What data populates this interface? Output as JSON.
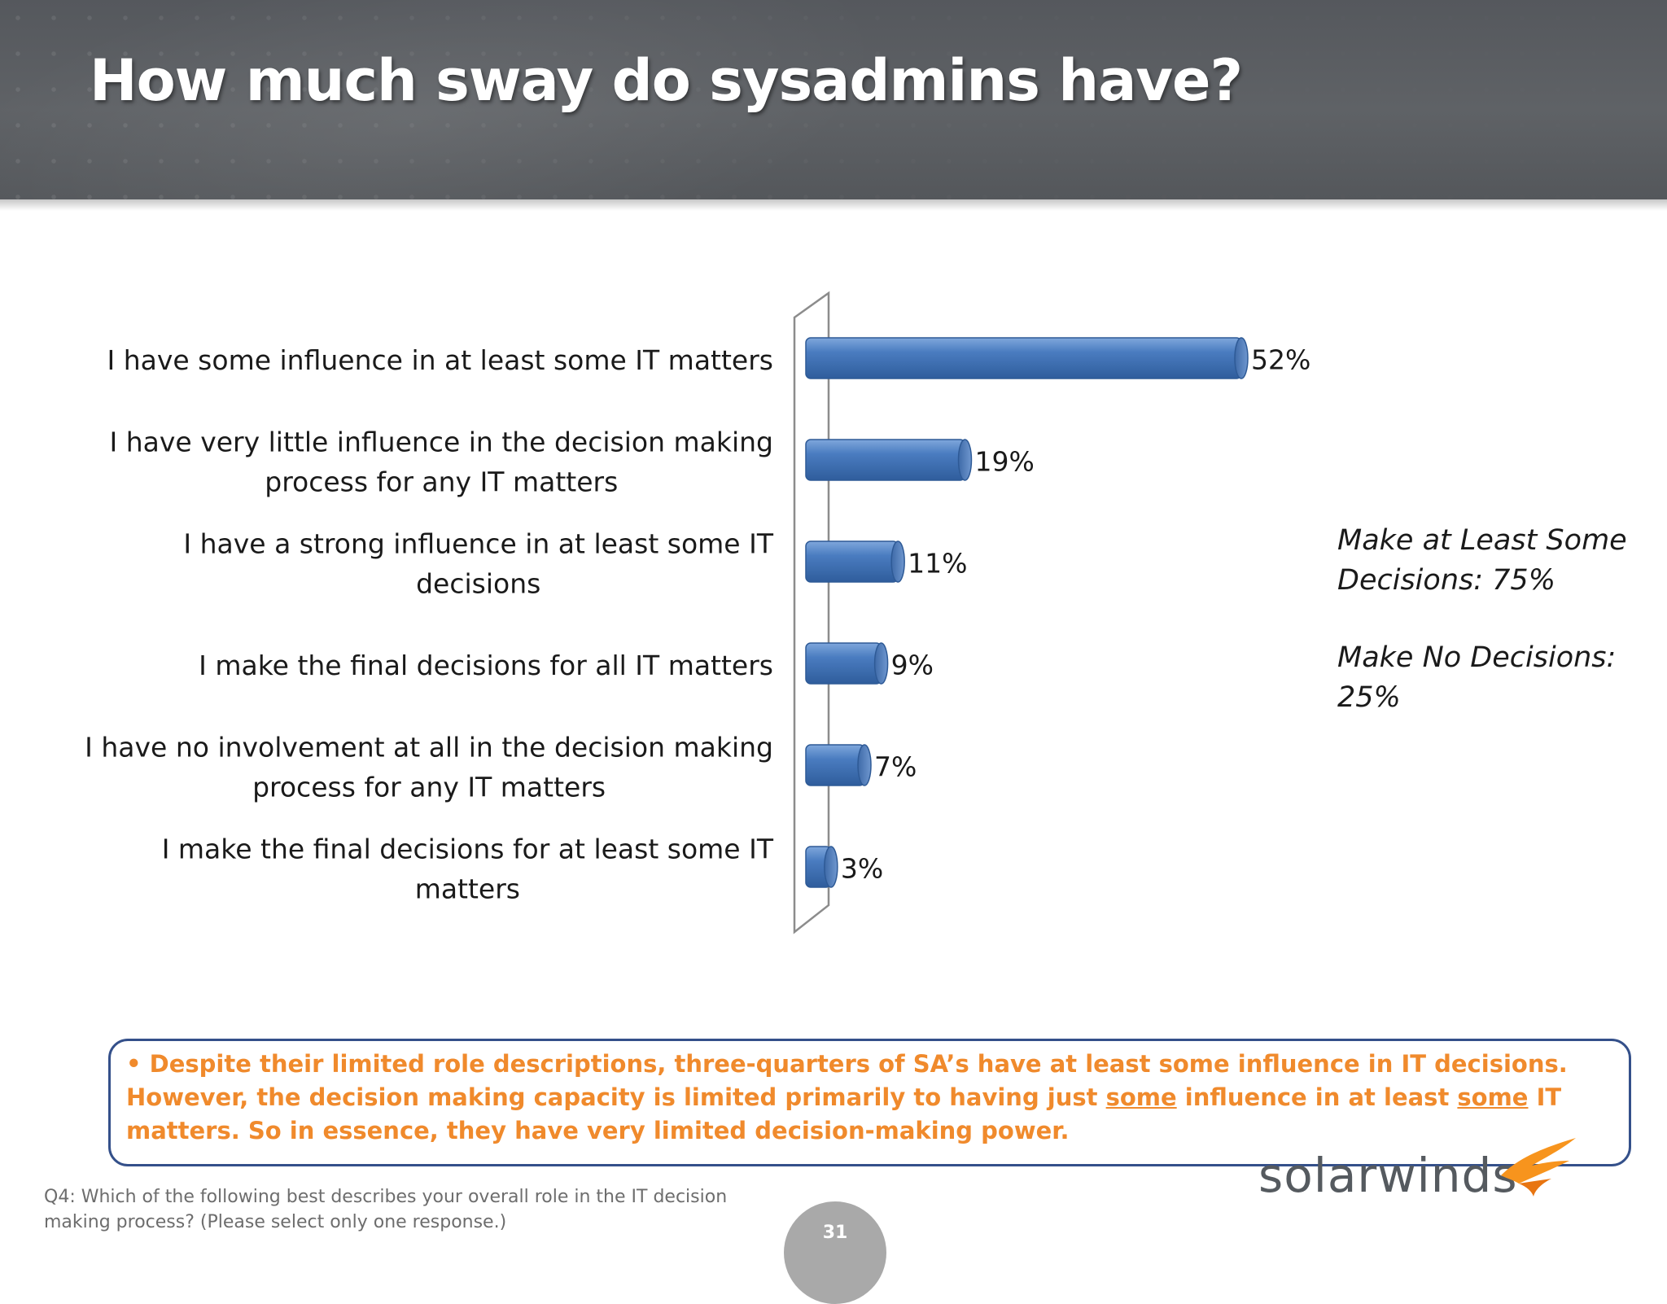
{
  "title": "How much sway do sysadmins have?",
  "chart_data": {
    "type": "bar",
    "orientation": "horizontal",
    "categories": [
      [
        "I have some influence in at least some IT matters"
      ],
      [
        "I have very little influence in the decision making",
        "process for any IT matters"
      ],
      [
        "I have a strong influence in at least some IT",
        "decisions"
      ],
      [
        "I make the final decisions for all IT matters"
      ],
      [
        "I have no involvement at all in the decision making",
        "process for any IT matters"
      ],
      [
        "I make the final decisions for at least some IT",
        "matters"
      ]
    ],
    "values": [
      52,
      19,
      11,
      9,
      7,
      3
    ],
    "value_labels": [
      "52%",
      "19%",
      "11%",
      "9%",
      "7%",
      "3%"
    ],
    "xlim": [
      0,
      60
    ],
    "bar_color": "#4a7cc0",
    "grid": false,
    "legend": "none"
  },
  "summary": {
    "line1": "Make at Least Some Decisions: 75%",
    "line2": "Make No Decisions: 25%"
  },
  "callout": {
    "bullet": "•",
    "text_a": "Despite their limited role descriptions, three-quarters of SA’s have at least some influence in IT decisions.  However, the decision making capacity is limited primarily to having just ",
    "u1": "some",
    "text_b": " influence in at least ",
    "u2": "some",
    "text_c": " IT matters.  So in essence, they have very limited decision-making power.",
    "color": "#f08a2c"
  },
  "footnote": "Q4: Which of the following best describes your overall role in the IT decision making process? (Please select only one response.)",
  "page_number": "31",
  "logo": {
    "text": "solarwinds",
    "icon": "solarwinds-bird-icon",
    "accent": "#f7941d"
  }
}
